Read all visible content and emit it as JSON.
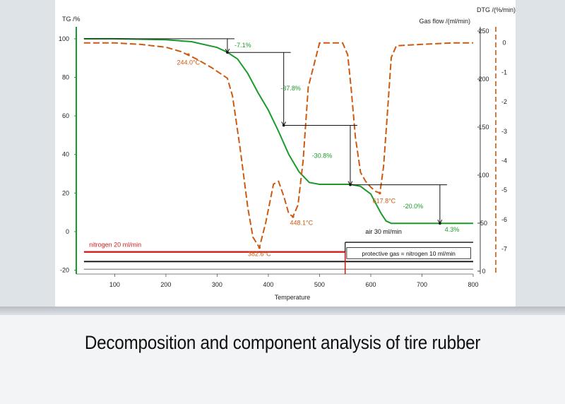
{
  "caption": "Decomposition and component analysis of tire rubber",
  "colors": {
    "tg": "#1a9a2a",
    "dtg": "#cc5a10",
    "flow_red": "#cc1f1f",
    "flow_black": "#111111",
    "flow_gray": "#7a7a7a",
    "bracket": "#111111",
    "left_axis": "#1a9a2a",
    "right_axis": "#cc5a10"
  },
  "chart_data": {
    "type": "line",
    "title": "",
    "xlabel": "Temperature",
    "x_range": [
      25,
      800
    ],
    "x_ticks": [
      100,
      200,
      300,
      400,
      500,
      600,
      700,
      800
    ],
    "left_axis": {
      "label": "TG /%",
      "range": [
        -22,
        104
      ],
      "ticks": [
        -20,
        0,
        20,
        40,
        60,
        80,
        100
      ]
    },
    "right_axis_flow": {
      "label": "Gas flow /(ml/min)",
      "range": [
        -3,
        250
      ],
      "ticks": [
        0,
        50,
        100,
        150,
        200,
        250
      ]
    },
    "right_axis_dtg": {
      "label": "DTG /(%/min)",
      "range": [
        -7.85,
        0.4
      ],
      "ticks": [
        0,
        -1,
        -2,
        -3,
        -4,
        -5,
        -6,
        -7
      ]
    },
    "grid": false,
    "series": [
      {
        "name": "TG",
        "axis": "left",
        "x": [
          40,
          100,
          200,
          250,
          300,
          320,
          340,
          360,
          380,
          400,
          420,
          440,
          460,
          480,
          500,
          520,
          540,
          560,
          580,
          600,
          610,
          620,
          630,
          640,
          660,
          700,
          750,
          800
        ],
        "y": [
          100,
          100,
          99.5,
          98.5,
          95.5,
          93,
          89.5,
          82,
          72,
          63,
          52,
          40,
          31,
          25.5,
          24.5,
          24.5,
          24.5,
          24.5,
          23.5,
          19.5,
          14.5,
          9.5,
          5.5,
          4.3,
          4.3,
          4.3,
          4.3,
          4.3
        ]
      },
      {
        "name": "DTG",
        "axis": "right_dtg",
        "x": [
          40,
          100,
          150,
          200,
          230,
          260,
          290,
          320,
          330,
          345,
          360,
          370,
          382.6,
          395,
          410,
          420,
          430,
          440,
          448.1,
          458,
          468,
          478,
          500,
          530,
          545,
          555,
          562,
          570,
          580,
          590,
          600,
          610,
          617.8,
          625,
          632,
          640,
          650,
          700,
          760,
          800
        ],
        "y": [
          0,
          0,
          -0.05,
          -0.15,
          -0.3,
          -0.55,
          -0.85,
          -1.2,
          -1.8,
          -3.6,
          -5.6,
          -6.6,
          -6.95,
          -6.1,
          -4.8,
          -4.7,
          -5.2,
          -5.8,
          -5.9,
          -5.5,
          -4,
          -1.5,
          0,
          0,
          0,
          -0.4,
          -1.6,
          -3.2,
          -4.4,
          -4.7,
          -4.9,
          -5.05,
          -5.1,
          -4.2,
          -2.5,
          -0.5,
          -0.1,
          -0.05,
          0,
          0
        ]
      },
      {
        "name": "nitrogen 20 ml/min",
        "axis": "right_flow",
        "x": [
          40,
          550
        ],
        "y": [
          20,
          20
        ]
      },
      {
        "name": "protective gas = nitrogen 10 ml/min",
        "axis": "right_flow",
        "x": [
          40,
          800
        ],
        "y": [
          10,
          10
        ]
      },
      {
        "name": "air 30 ml/min",
        "axis": "right_flow",
        "x": [
          550,
          800
        ],
        "y": [
          30,
          30
        ]
      }
    ],
    "mass_loss_steps": [
      {
        "label": "-7.1%",
        "from_t": 40,
        "to_t": 320,
        "upper": 100,
        "lower": 92.9
      },
      {
        "label": "-37.8%",
        "from_t": 320,
        "to_t": 430,
        "upper": 92.9,
        "lower": 55.1
      },
      {
        "label": "-30.8%",
        "from_t": 430,
        "to_t": 560,
        "upper": 55.1,
        "lower": 24.3
      },
      {
        "label": "-20.0%",
        "from_t": 560,
        "to_t": 735,
        "upper": 24.3,
        "lower": 4.3
      }
    ],
    "residue_label": "4.3%",
    "peak_annotations": [
      {
        "label": "244.0°C",
        "t": 244,
        "dtg": -0.4
      },
      {
        "label": "382.6°C",
        "t": 382.6,
        "dtg": -6.95
      },
      {
        "label": "448.1°C",
        "t": 448.1,
        "dtg": -5.9
      },
      {
        "label": "617.8°C",
        "t": 617.8,
        "dtg": -5.1
      }
    ],
    "flow_labels": [
      "nitrogen 20 ml/min",
      "air 30 ml/min",
      "protective gas = nitrogen 10 ml/min"
    ]
  }
}
